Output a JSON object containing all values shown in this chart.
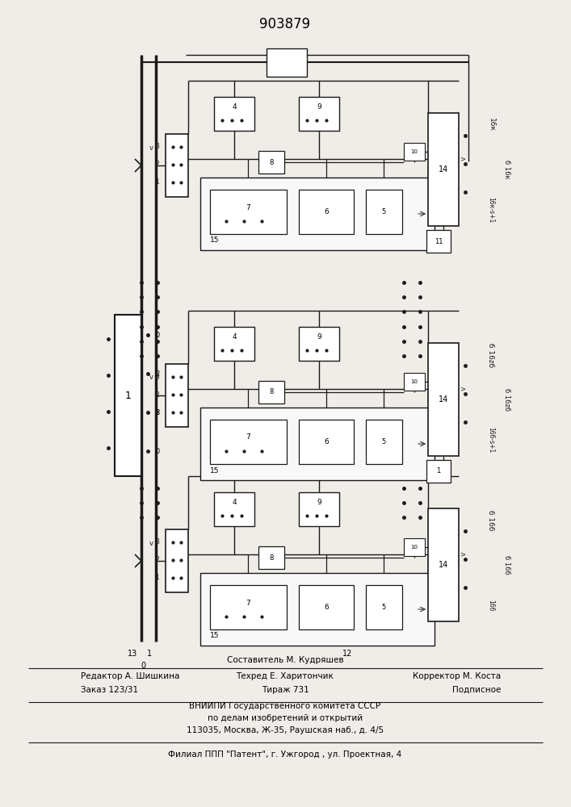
{
  "title": "903879",
  "bg_color": "#f0ede8",
  "line_color": "#1a1a1a",
  "box_color": "#ffffff",
  "text_color": "#1a1a1a",
  "footer": {
    "composer": "Составитель М. Кудряшев",
    "editor": "Редактор А. Шишкина",
    "techred": "Техред Е. Харитончик",
    "corrector": "Корректор М. Коста",
    "order": "Заказ 123/31",
    "tirazh": "Тираж 731",
    "podpisnoe": "Подписное",
    "vniip1": "ВНИИПИ Государственного комитета СССР",
    "vniip2": "по делам изобретений и открытий",
    "address": "113035, Москва, Ж-35, Раушская наб., д. 4/5",
    "filial": "Филиал ППП \"Патент\", г. Ужгород , ул. Проектная, 4"
  },
  "channels": [
    {
      "label_top": "16к",
      "label_mid": "б 16к",
      "label_bot": "16к-s+1",
      "label_11": "11"
    },
    {
      "label_top": "б 16zб",
      "label_mid": "б 16zб",
      "label_bot": "16б-s+1",
      "label_11": "1"
    },
    {
      "label_top": "б 16б",
      "label_mid": "б 16б",
      "label_bot": "16б",
      "label_11": ""
    }
  ]
}
